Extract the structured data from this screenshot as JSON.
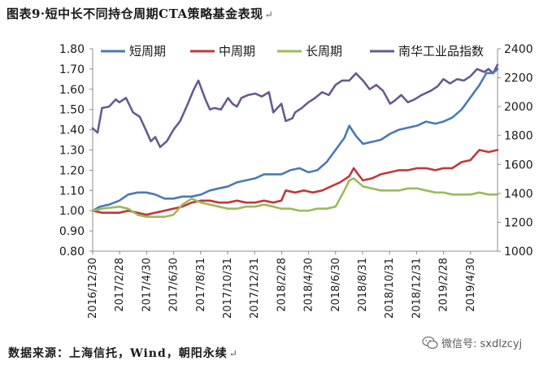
{
  "header": {
    "title": "图表9·短中长不同持仓周期CTA策略基金表现",
    "title_mark": "↵"
  },
  "footer": {
    "source": "数据来源：上海信托，Wind，朝阳永续",
    "source_mark": "↵"
  },
  "watermark": {
    "text": "微信号: sxdlzcyj",
    "icon": "wechat-icon"
  },
  "chart_data": {
    "type": "line",
    "title": "图表9·短中长不同持仓周期CTA策略基金表现",
    "x_tick_labels": [
      "2016/12/30",
      "2017/2/28",
      "2017/4/30",
      "2017/6/30",
      "2017/8/31",
      "2017/10/31",
      "2017/12/31",
      "2018/2/28",
      "2018/4/30",
      "2018/6/30",
      "2018/8/31",
      "2018/10/31",
      "2018/12/31",
      "2019/2/28",
      "2019/4/30"
    ],
    "x_range": [
      "2016-12-30",
      "2019-06-30"
    ],
    "y_left": {
      "ticks": [
        "0.80",
        "0.90",
        "1.00",
        "1.10",
        "1.20",
        "1.30",
        "1.40",
        "1.50",
        "1.60",
        "1.70",
        "1.80"
      ],
      "range": [
        0.8,
        1.8
      ]
    },
    "y_right": {
      "ticks": [
        "1000",
        "1200",
        "1400",
        "1600",
        "1800",
        "2000",
        "2200",
        "2400"
      ],
      "range": [
        1000,
        2400
      ]
    },
    "grid": false,
    "legend_position": "top",
    "series": [
      {
        "name": "短周期",
        "axis": "left",
        "color": "#4a7ab5",
        "points": [
          [
            "2016-12-30",
            1.0
          ],
          [
            "2017-01-15",
            1.02
          ],
          [
            "2017-02-05",
            1.03
          ],
          [
            "2017-02-28",
            1.05
          ],
          [
            "2017-03-20",
            1.08
          ],
          [
            "2017-04-10",
            1.09
          ],
          [
            "2017-04-30",
            1.09
          ],
          [
            "2017-05-20",
            1.08
          ],
          [
            "2017-06-10",
            1.06
          ],
          [
            "2017-06-30",
            1.06
          ],
          [
            "2017-07-20",
            1.07
          ],
          [
            "2017-08-10",
            1.07
          ],
          [
            "2017-08-31",
            1.08
          ],
          [
            "2017-09-20",
            1.1
          ],
          [
            "2017-10-10",
            1.11
          ],
          [
            "2017-10-31",
            1.12
          ],
          [
            "2017-11-20",
            1.14
          ],
          [
            "2017-12-10",
            1.15
          ],
          [
            "2017-12-31",
            1.16
          ],
          [
            "2018-01-20",
            1.18
          ],
          [
            "2018-02-10",
            1.18
          ],
          [
            "2018-02-28",
            1.18
          ],
          [
            "2018-03-20",
            1.2
          ],
          [
            "2018-04-10",
            1.21
          ],
          [
            "2018-04-30",
            1.19
          ],
          [
            "2018-05-20",
            1.2
          ],
          [
            "2018-06-10",
            1.24
          ],
          [
            "2018-06-30",
            1.3
          ],
          [
            "2018-07-20",
            1.36
          ],
          [
            "2018-07-31",
            1.42
          ],
          [
            "2018-08-15",
            1.37
          ],
          [
            "2018-08-31",
            1.33
          ],
          [
            "2018-09-20",
            1.34
          ],
          [
            "2018-10-10",
            1.35
          ],
          [
            "2018-10-31",
            1.38
          ],
          [
            "2018-11-20",
            1.4
          ],
          [
            "2018-12-10",
            1.41
          ],
          [
            "2018-12-31",
            1.42
          ],
          [
            "2019-01-20",
            1.44
          ],
          [
            "2019-02-10",
            1.43
          ],
          [
            "2019-02-28",
            1.44
          ],
          [
            "2019-03-20",
            1.46
          ],
          [
            "2019-04-10",
            1.5
          ],
          [
            "2019-04-30",
            1.56
          ],
          [
            "2019-05-20",
            1.62
          ],
          [
            "2019-06-05",
            1.68
          ],
          [
            "2019-06-20",
            1.68
          ],
          [
            "2019-06-30",
            1.7
          ]
        ]
      },
      {
        "name": "中周期",
        "axis": "left",
        "color": "#c0393b",
        "points": [
          [
            "2016-12-30",
            1.0
          ],
          [
            "2017-01-20",
            0.99
          ],
          [
            "2017-02-28",
            0.99
          ],
          [
            "2017-03-20",
            1.0
          ],
          [
            "2017-04-10",
            0.99
          ],
          [
            "2017-04-30",
            0.98
          ],
          [
            "2017-05-20",
            0.99
          ],
          [
            "2017-06-10",
            1.0
          ],
          [
            "2017-06-30",
            1.01
          ],
          [
            "2017-07-20",
            1.02
          ],
          [
            "2017-08-10",
            1.04
          ],
          [
            "2017-08-31",
            1.05
          ],
          [
            "2017-09-20",
            1.05
          ],
          [
            "2017-10-10",
            1.04
          ],
          [
            "2017-10-31",
            1.04
          ],
          [
            "2017-11-20",
            1.05
          ],
          [
            "2017-12-10",
            1.04
          ],
          [
            "2017-12-31",
            1.04
          ],
          [
            "2018-01-20",
            1.05
          ],
          [
            "2018-02-10",
            1.04
          ],
          [
            "2018-02-28",
            1.05
          ],
          [
            "2018-03-10",
            1.1
          ],
          [
            "2018-03-31",
            1.09
          ],
          [
            "2018-04-20",
            1.1
          ],
          [
            "2018-05-10",
            1.09
          ],
          [
            "2018-05-31",
            1.1
          ],
          [
            "2018-06-20",
            1.12
          ],
          [
            "2018-07-10",
            1.14
          ],
          [
            "2018-07-31",
            1.17
          ],
          [
            "2018-08-10",
            1.21
          ],
          [
            "2018-08-20",
            1.18
          ],
          [
            "2018-08-31",
            1.15
          ],
          [
            "2018-09-20",
            1.16
          ],
          [
            "2018-10-10",
            1.18
          ],
          [
            "2018-10-31",
            1.19
          ],
          [
            "2018-11-20",
            1.2
          ],
          [
            "2018-12-10",
            1.2
          ],
          [
            "2018-12-31",
            1.21
          ],
          [
            "2019-01-20",
            1.21
          ],
          [
            "2019-02-10",
            1.2
          ],
          [
            "2019-02-28",
            1.21
          ],
          [
            "2019-03-20",
            1.21
          ],
          [
            "2019-04-10",
            1.24
          ],
          [
            "2019-04-30",
            1.25
          ],
          [
            "2019-05-20",
            1.3
          ],
          [
            "2019-06-10",
            1.29
          ],
          [
            "2019-06-30",
            1.3
          ]
        ]
      },
      {
        "name": "长周期",
        "axis": "left",
        "color": "#9bbb59",
        "points": [
          [
            "2016-12-30",
            1.0
          ],
          [
            "2017-01-20",
            1.01
          ],
          [
            "2017-02-28",
            1.02
          ],
          [
            "2017-03-20",
            1.01
          ],
          [
            "2017-04-10",
            0.98
          ],
          [
            "2017-04-30",
            0.97
          ],
          [
            "2017-05-20",
            0.97
          ],
          [
            "2017-06-10",
            0.97
          ],
          [
            "2017-06-30",
            0.98
          ],
          [
            "2017-07-20",
            1.03
          ],
          [
            "2017-08-10",
            1.06
          ],
          [
            "2017-08-31",
            1.04
          ],
          [
            "2017-09-20",
            1.03
          ],
          [
            "2017-10-10",
            1.02
          ],
          [
            "2017-10-31",
            1.01
          ],
          [
            "2017-11-20",
            1.01
          ],
          [
            "2017-12-10",
            1.02
          ],
          [
            "2017-12-31",
            1.02
          ],
          [
            "2018-01-20",
            1.03
          ],
          [
            "2018-02-10",
            1.02
          ],
          [
            "2018-02-28",
            1.01
          ],
          [
            "2018-03-20",
            1.01
          ],
          [
            "2018-04-10",
            1.0
          ],
          [
            "2018-04-30",
            1.0
          ],
          [
            "2018-05-20",
            1.01
          ],
          [
            "2018-06-10",
            1.01
          ],
          [
            "2018-06-30",
            1.02
          ],
          [
            "2018-07-10",
            1.06
          ],
          [
            "2018-07-20",
            1.1
          ],
          [
            "2018-07-31",
            1.15
          ],
          [
            "2018-08-10",
            1.16
          ],
          [
            "2018-08-31",
            1.12
          ],
          [
            "2018-09-20",
            1.11
          ],
          [
            "2018-10-10",
            1.1
          ],
          [
            "2018-10-31",
            1.1
          ],
          [
            "2018-11-20",
            1.1
          ],
          [
            "2018-12-10",
            1.11
          ],
          [
            "2018-12-31",
            1.11
          ],
          [
            "2019-01-20",
            1.1
          ],
          [
            "2019-02-10",
            1.09
          ],
          [
            "2019-02-28",
            1.09
          ],
          [
            "2019-03-20",
            1.08
          ],
          [
            "2019-04-10",
            1.08
          ],
          [
            "2019-04-30",
            1.08
          ],
          [
            "2019-05-20",
            1.09
          ],
          [
            "2019-06-10",
            1.08
          ],
          [
            "2019-06-30",
            1.08
          ]
        ]
      },
      {
        "name": "南华工业品指数",
        "axis": "right",
        "color": "#6a5a8e",
        "points": [
          [
            "2016-12-30",
            1850
          ],
          [
            "2017-01-10",
            1820
          ],
          [
            "2017-01-20",
            1990
          ],
          [
            "2017-02-05",
            2000
          ],
          [
            "2017-02-20",
            2050
          ],
          [
            "2017-02-28",
            2030
          ],
          [
            "2017-03-15",
            2060
          ],
          [
            "2017-03-31",
            1960
          ],
          [
            "2017-04-15",
            1930
          ],
          [
            "2017-04-30",
            1830
          ],
          [
            "2017-05-10",
            1760
          ],
          [
            "2017-05-20",
            1790
          ],
          [
            "2017-05-31",
            1720
          ],
          [
            "2017-06-15",
            1760
          ],
          [
            "2017-06-30",
            1840
          ],
          [
            "2017-07-15",
            1900
          ],
          [
            "2017-07-31",
            2010
          ],
          [
            "2017-08-15",
            2120
          ],
          [
            "2017-08-25",
            2180
          ],
          [
            "2017-09-10",
            2050
          ],
          [
            "2017-09-20",
            1980
          ],
          [
            "2017-09-30",
            1990
          ],
          [
            "2017-10-15",
            1980
          ],
          [
            "2017-10-31",
            2060
          ],
          [
            "2017-11-10",
            2020
          ],
          [
            "2017-11-20",
            2000
          ],
          [
            "2017-11-30",
            2060
          ],
          [
            "2017-12-15",
            2080
          ],
          [
            "2017-12-31",
            2090
          ],
          [
            "2018-01-15",
            2070
          ],
          [
            "2018-01-31",
            2100
          ],
          [
            "2018-02-10",
            1960
          ],
          [
            "2018-02-28",
            2020
          ],
          [
            "2018-03-10",
            1900
          ],
          [
            "2018-03-25",
            1920
          ],
          [
            "2018-03-31",
            1960
          ],
          [
            "2018-04-15",
            1990
          ],
          [
            "2018-04-30",
            2030
          ],
          [
            "2018-05-15",
            2060
          ],
          [
            "2018-05-31",
            2100
          ],
          [
            "2018-06-15",
            2080
          ],
          [
            "2018-06-30",
            2150
          ],
          [
            "2018-07-15",
            2180
          ],
          [
            "2018-07-31",
            2180
          ],
          [
            "2018-08-15",
            2230
          ],
          [
            "2018-08-31",
            2180
          ],
          [
            "2018-09-15",
            2120
          ],
          [
            "2018-09-30",
            2150
          ],
          [
            "2018-10-15",
            2110
          ],
          [
            "2018-10-31",
            2020
          ],
          [
            "2018-11-10",
            2040
          ],
          [
            "2018-11-25",
            2080
          ],
          [
            "2018-12-10",
            2030
          ],
          [
            "2018-12-25",
            2050
          ],
          [
            "2019-01-10",
            2080
          ],
          [
            "2019-01-31",
            2110
          ],
          [
            "2019-02-15",
            2140
          ],
          [
            "2019-02-28",
            2190
          ],
          [
            "2019-03-15",
            2160
          ],
          [
            "2019-03-31",
            2190
          ],
          [
            "2019-04-15",
            2180
          ],
          [
            "2019-04-30",
            2210
          ],
          [
            "2019-05-15",
            2260
          ],
          [
            "2019-05-31",
            2240
          ],
          [
            "2019-06-10",
            2260
          ],
          [
            "2019-06-20",
            2230
          ],
          [
            "2019-06-30",
            2290
          ]
        ]
      }
    ]
  }
}
